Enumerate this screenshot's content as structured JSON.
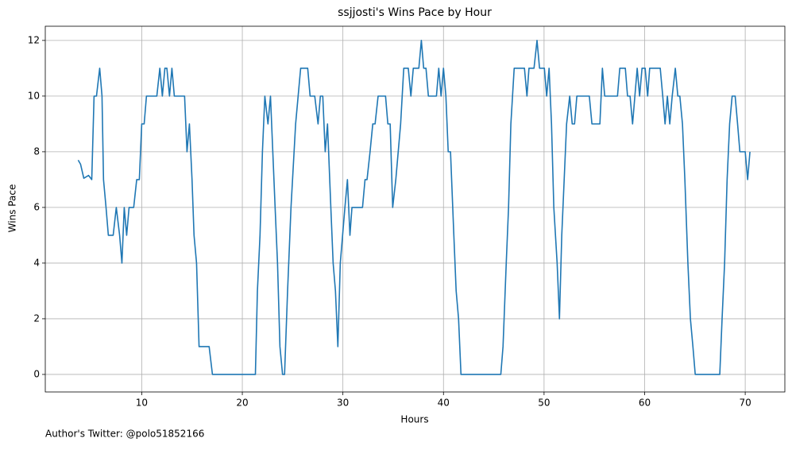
{
  "chart_data": {
    "type": "line",
    "title": "ssjjosti's Wins Pace by Hour",
    "x_label": "Hours",
    "y_label": "Wins Pace",
    "annotation": "Author's Twitter: @polo51852166",
    "color": "#1f77b4",
    "grid": true,
    "x": [
      3.68,
      3.92,
      4.24,
      4.71,
      5.03,
      5.26,
      5.5,
      5.82,
      6.05,
      6.2,
      6.45,
      6.68,
      7.16,
      7.47,
      7.8,
      8.03,
      8.26,
      8.5,
      8.74,
      9.2,
      9.5,
      9.76,
      10,
      10.24,
      10.47,
      11.5,
      11.8,
      12.05,
      12.3,
      12.5,
      12.76,
      13,
      13.24,
      14.26,
      14.5,
      14.74,
      15,
      15.2,
      15.45,
      15.7,
      16.7,
      17.03,
      21.3,
      21.5,
      21.76,
      22,
      22.24,
      22.55,
      22.8,
      23.03,
      23.26,
      23.5,
      23.74,
      24,
      24.2,
      24.5,
      24.84,
      25.3,
      25.8,
      26.5,
      26.74,
      27.2,
      27.53,
      27.76,
      28,
      28.24,
      28.47,
      28.8,
      29.03,
      29.26,
      29.5,
      29.74,
      29.97,
      30.2,
      30.45,
      30.7,
      30.9,
      31.95,
      32.2,
      32.4,
      32.7,
      32.97,
      33.2,
      33.5,
      34.24,
      34.47,
      34.7,
      34.95,
      35.26,
      35.74,
      36.05,
      36.5,
      36.76,
      37,
      37.55,
      37.8,
      38.03,
      38.26,
      38.5,
      39.3,
      39.53,
      39.76,
      40,
      40.24,
      40.47,
      40.7,
      41.03,
      41.26,
      41.5,
      41.74,
      45.7,
      45.92,
      46.24,
      46.47,
      46.7,
      47.03,
      48.05,
      48.3,
      48.5,
      49,
      49.3,
      49.55,
      50.03,
      50.26,
      50.5,
      50.74,
      50.97,
      51.3,
      51.53,
      51.76,
      52,
      52.24,
      52.55,
      52.8,
      53.03,
      53.26,
      54.5,
      54.76,
      55.55,
      55.8,
      56.03,
      57.3,
      57.53,
      58.08,
      58.3,
      58.55,
      58.8,
      59.03,
      59.26,
      59.5,
      59.74,
      60.05,
      60.3,
      60.5,
      61.55,
      61.8,
      62.03,
      62.26,
      62.5,
      62.74,
      63.05,
      63.3,
      63.5,
      63.76,
      64,
      64.3,
      64.55,
      64.8,
      65.03,
      67.47,
      67.7,
      67.95,
      68.2,
      68.45,
      68.7,
      69,
      69.24,
      69.47,
      70,
      70.24,
      70.47
    ],
    "values": [
      7.7,
      7.55,
      7.05,
      7.15,
      7,
      10,
      10,
      11,
      10,
      7,
      6,
      5,
      5,
      6,
      5,
      4,
      6,
      5,
      6,
      6,
      7,
      7,
      9,
      9,
      10,
      10,
      11,
      10,
      11,
      11,
      10,
      11,
      10,
      10,
      8,
      9,
      7,
      5,
      4,
      1,
      1,
      0,
      0,
      3,
      5,
      8,
      10,
      9,
      10,
      8,
      6,
      4,
      1,
      0,
      0,
      3,
      6,
      9,
      11,
      11,
      10,
      10,
      9,
      10,
      10,
      8,
      9,
      6,
      4,
      3,
      1,
      4,
      5,
      6,
      7,
      5,
      6,
      6,
      7,
      7,
      8,
      9,
      9,
      10,
      10,
      9,
      9,
      6,
      7,
      9,
      11,
      11,
      10,
      11,
      11,
      12,
      11,
      11,
      10,
      10,
      11,
      10,
      11,
      10,
      8,
      8,
      5,
      3,
      2,
      0,
      0,
      1,
      4,
      6,
      9,
      11,
      11,
      10,
      11,
      11,
      12,
      11,
      11,
      10,
      11,
      9,
      6,
      4,
      2,
      5,
      7,
      9,
      10,
      9,
      9,
      10,
      10,
      9,
      9,
      11,
      10,
      10,
      11,
      11,
      10,
      10,
      9,
      10,
      11,
      10,
      11,
      11,
      10,
      11,
      11,
      10,
      9,
      10,
      9,
      10,
      11,
      10,
      10,
      9,
      7,
      4,
      2,
      1,
      0,
      0,
      2,
      4,
      7,
      9,
      10,
      10,
      9,
      8,
      8,
      7,
      8
    ],
    "xlim": [
      0.41,
      73.94
    ],
    "ylim": [
      -0.63,
      12.51
    ],
    "xticks": [
      10,
      20,
      30,
      40,
      50,
      60,
      70
    ],
    "yticks": [
      0,
      2,
      4,
      6,
      8,
      10,
      12
    ]
  }
}
